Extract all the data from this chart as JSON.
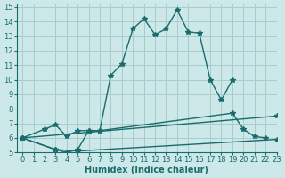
{
  "xlabel": "Humidex (Indice chaleur)",
  "bg_color": "#cce8e8",
  "grid_color": "#aacccc",
  "line_color": "#1a6b6b",
  "xlim": [
    -0.5,
    23
  ],
  "ylim": [
    5,
    15.2
  ],
  "xticks": [
    0,
    1,
    2,
    3,
    4,
    5,
    6,
    7,
    8,
    9,
    10,
    11,
    12,
    13,
    14,
    15,
    16,
    17,
    18,
    19,
    20,
    21,
    22,
    23
  ],
  "yticks": [
    5,
    6,
    7,
    8,
    9,
    10,
    11,
    12,
    13,
    14,
    15
  ],
  "curve1_x": [
    0,
    2,
    3,
    4,
    5,
    6,
    7,
    8,
    9,
    10,
    11,
    12,
    13,
    14,
    15,
    16,
    17,
    18,
    19
  ],
  "curve1_y": [
    6.0,
    6.6,
    6.9,
    6.1,
    6.5,
    6.5,
    6.5,
    10.3,
    11.1,
    13.5,
    14.2,
    13.1,
    13.5,
    14.8,
    13.3,
    13.2,
    10.0,
    8.6,
    10.0
  ],
  "curve2_x": [
    0,
    3,
    4,
    5,
    6,
    7,
    19,
    20,
    21,
    22
  ],
  "curve2_y": [
    6.0,
    5.2,
    5.0,
    5.2,
    6.5,
    6.5,
    7.7,
    6.6,
    6.1,
    6.0
  ],
  "curve3_x": [
    0,
    23
  ],
  "curve3_y": [
    6.0,
    7.5
  ],
  "curve4_x": [
    0,
    3,
    5,
    23
  ],
  "curve4_y": [
    6.0,
    5.2,
    5.1,
    5.9
  ]
}
